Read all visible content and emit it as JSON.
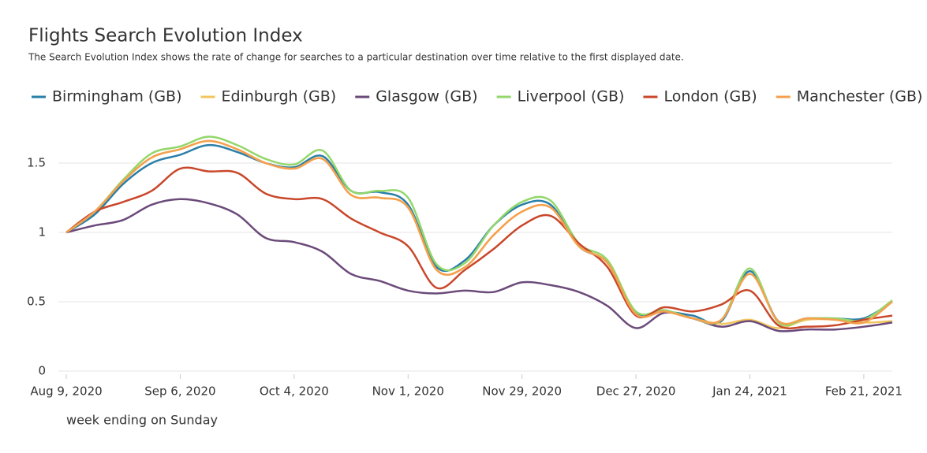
{
  "chart_data": {
    "type": "line",
    "title": "Flights Search Evolution Index",
    "subtitle": "The Search Evolution Index shows the rate of change for searches to a particular destination over time relative to the first displayed date.",
    "x_label": "week ending on Sunday",
    "x": [
      "2020-08-09",
      "2020-08-16",
      "2020-08-23",
      "2020-08-30",
      "2020-09-06",
      "2020-09-13",
      "2020-09-20",
      "2020-09-27",
      "2020-10-04",
      "2020-10-11",
      "2020-10-18",
      "2020-10-25",
      "2020-11-01",
      "2020-11-08",
      "2020-11-15",
      "2020-11-22",
      "2020-11-29",
      "2020-12-06",
      "2020-12-13",
      "2020-12-20",
      "2020-12-27",
      "2021-01-03",
      "2021-01-10",
      "2021-01-17",
      "2021-01-24",
      "2021-01-31",
      "2021-02-07",
      "2021-02-14",
      "2021-02-21",
      "2021-02-28"
    ],
    "xlim": [
      "2020-08-09",
      "2021-02-28"
    ],
    "xticks": [
      {
        "value": "2020-08-09",
        "label": "Aug 9, 2020"
      },
      {
        "value": "2020-09-06",
        "label": "Sep 6, 2020"
      },
      {
        "value": "2020-10-04",
        "label": "Oct 4, 2020"
      },
      {
        "value": "2020-11-01",
        "label": "Nov 1, 2020"
      },
      {
        "value": "2020-11-29",
        "label": "Nov 29, 2020"
      },
      {
        "value": "2020-12-27",
        "label": "Dec 27, 2020"
      },
      {
        "value": "2021-01-24",
        "label": "Jan 24, 2021"
      },
      {
        "value": "2021-02-21",
        "label": "Feb 21, 2021"
      }
    ],
    "ylim": [
      0,
      1.75
    ],
    "yticks": [
      0,
      0.5,
      1,
      1.5
    ],
    "grid": true,
    "legend": "top",
    "series": [
      {
        "name": "Birmingham (GB)",
        "color": "#2a7fa8",
        "values": [
          1.0,
          1.13,
          1.35,
          1.5,
          1.56,
          1.63,
          1.58,
          1.5,
          1.47,
          1.55,
          1.3,
          1.29,
          1.2,
          0.75,
          0.8,
          1.05,
          1.2,
          1.2,
          0.9,
          0.78,
          0.42,
          0.43,
          0.4,
          0.36,
          0.72,
          0.36,
          0.38,
          0.38,
          0.38,
          0.5
        ]
      },
      {
        "name": "Edinburgh (GB)",
        "color": "#f2c55c",
        "values": [
          1.0,
          1.15,
          1.37,
          1.54,
          1.6,
          1.66,
          1.6,
          1.5,
          1.46,
          1.53,
          1.27,
          1.25,
          1.18,
          0.73,
          0.75,
          0.98,
          1.15,
          1.18,
          0.9,
          0.78,
          0.41,
          0.43,
          0.38,
          0.34,
          0.37,
          0.31,
          0.37,
          0.37,
          0.35,
          0.36
        ]
      },
      {
        "name": "Glasgow (GB)",
        "color": "#6b4a7a",
        "values": [
          1.0,
          1.05,
          1.09,
          1.2,
          1.24,
          1.21,
          1.13,
          0.96,
          0.93,
          0.86,
          0.7,
          0.65,
          0.58,
          0.56,
          0.58,
          0.57,
          0.64,
          0.62,
          0.57,
          0.47,
          0.31,
          0.42,
          0.38,
          0.32,
          0.36,
          0.29,
          0.3,
          0.3,
          0.32,
          0.35
        ]
      },
      {
        "name": "Liverpool (GB)",
        "color": "#93d76b",
        "values": [
          1.0,
          1.15,
          1.38,
          1.57,
          1.62,
          1.69,
          1.63,
          1.53,
          1.49,
          1.59,
          1.3,
          1.3,
          1.25,
          0.77,
          0.78,
          1.05,
          1.22,
          1.23,
          0.92,
          0.8,
          0.43,
          0.44,
          0.38,
          0.37,
          0.74,
          0.35,
          0.38,
          0.38,
          0.37,
          0.51
        ]
      },
      {
        "name": "London (GB)",
        "color": "#c9472a",
        "values": [
          1.0,
          1.15,
          1.22,
          1.3,
          1.46,
          1.44,
          1.43,
          1.28,
          1.24,
          1.24,
          1.1,
          1.0,
          0.9,
          0.6,
          0.73,
          0.88,
          1.05,
          1.12,
          0.92,
          0.75,
          0.4,
          0.46,
          0.43,
          0.48,
          0.58,
          0.33,
          0.32,
          0.33,
          0.37,
          0.4
        ]
      },
      {
        "name": "Manchester (GB)",
        "color": "#f5a04e",
        "values": [
          1.0,
          1.15,
          1.37,
          1.54,
          1.6,
          1.66,
          1.6,
          1.5,
          1.46,
          1.53,
          1.27,
          1.25,
          1.18,
          0.73,
          0.75,
          0.98,
          1.15,
          1.18,
          0.9,
          0.78,
          0.41,
          0.43,
          0.38,
          0.37,
          0.7,
          0.36,
          0.38,
          0.37,
          0.35,
          0.5
        ]
      }
    ]
  }
}
